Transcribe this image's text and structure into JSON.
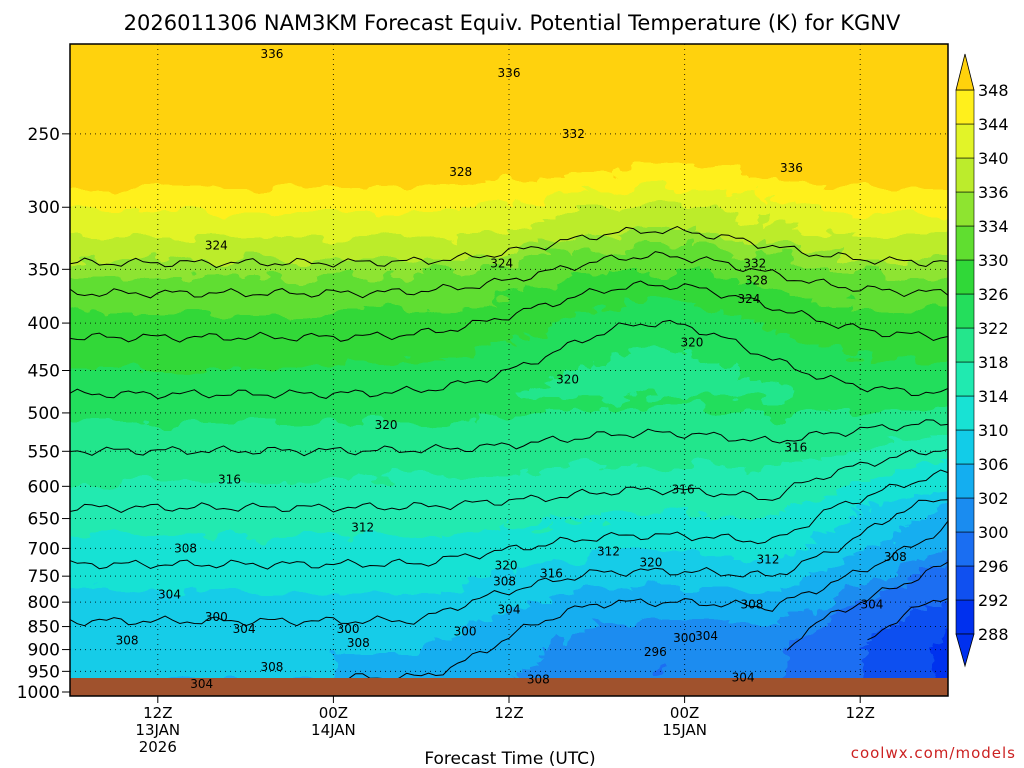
{
  "chart_data": {
    "type": "contour",
    "title": "2026011306 NAM3KM Forecast Equiv. Potential Temperature (K) for KGNV",
    "xlabel": "Forecast Time (UTC)",
    "ylabel": "",
    "credit": "coolwx.com/models",
    "y_axis": {
      "scale": "log-pressure",
      "ylim": [
        1010,
        200
      ],
      "ticks": [
        250,
        300,
        350,
        400,
        450,
        500,
        550,
        600,
        650,
        700,
        750,
        800,
        850,
        900,
        950,
        1000
      ]
    },
    "x_axis": {
      "ticks": [
        {
          "hour": 6,
          "lines": [
            "12Z",
            "13JAN",
            "2026"
          ]
        },
        {
          "hour": 18,
          "lines": [
            "00Z",
            "14JAN"
          ]
        },
        {
          "hour": 30,
          "lines": [
            "12Z"
          ]
        },
        {
          "hour": 42,
          "lines": [
            "00Z",
            "15JAN"
          ]
        },
        {
          "hour": 54,
          "lines": [
            "12Z"
          ]
        }
      ],
      "xlim": [
        0,
        60
      ]
    },
    "colorbar": {
      "levels": [
        288,
        292,
        296,
        300,
        302,
        306,
        310,
        314,
        318,
        322,
        326,
        330,
        334,
        336,
        340,
        344,
        348
      ],
      "colors": [
        "#0030ee",
        "#1050f0",
        "#1a6ef2",
        "#1a8cf0",
        "#14aef0",
        "#12cce8",
        "#18e2d4",
        "#20eab0",
        "#24e68c",
        "#24de5c",
        "#30d838",
        "#60de30",
        "#8ee430",
        "#bcec2c",
        "#e2f428",
        "#fff01c",
        "#ffd20c"
      ]
    },
    "contour_labels": [
      {
        "text": "336",
        "hour": 13.8,
        "p": 205
      },
      {
        "text": "336",
        "hour": 30.0,
        "p": 215
      },
      {
        "text": "336",
        "hour": 49.3,
        "p": 272
      },
      {
        "text": "332",
        "hour": 34.4,
        "p": 250
      },
      {
        "text": "332",
        "hour": 46.8,
        "p": 345
      },
      {
        "text": "328",
        "hour": 26.7,
        "p": 275
      },
      {
        "text": "328",
        "hour": 46.9,
        "p": 360
      },
      {
        "text": "324",
        "hour": 10.0,
        "p": 330
      },
      {
        "text": "324",
        "hour": 29.5,
        "p": 345
      },
      {
        "text": "324",
        "hour": 46.4,
        "p": 377
      },
      {
        "text": "320",
        "hour": 42.5,
        "p": 420
      },
      {
        "text": "320",
        "hour": 34.0,
        "p": 460
      },
      {
        "text": "320",
        "hour": 21.6,
        "p": 515
      },
      {
        "text": "320",
        "hour": 29.8,
        "p": 730
      },
      {
        "text": "320",
        "hour": 39.7,
        "p": 725
      },
      {
        "text": "316",
        "hour": 10.9,
        "p": 590
      },
      {
        "text": "316",
        "hour": 49.6,
        "p": 545
      },
      {
        "text": "316",
        "hour": 41.9,
        "p": 605
      },
      {
        "text": "316",
        "hour": 32.9,
        "p": 745
      },
      {
        "text": "312",
        "hour": 20.0,
        "p": 665
      },
      {
        "text": "312",
        "hour": 36.8,
        "p": 705
      },
      {
        "text": "312",
        "hour": 47.7,
        "p": 720
      },
      {
        "text": "308",
        "hour": 7.9,
        "p": 700
      },
      {
        "text": "308",
        "hour": 29.7,
        "p": 760
      },
      {
        "text": "308",
        "hour": 56.4,
        "p": 715
      },
      {
        "text": "308",
        "hour": 46.6,
        "p": 805
      },
      {
        "text": "308",
        "hour": 3.9,
        "p": 880
      },
      {
        "text": "308",
        "hour": 19.7,
        "p": 885
      },
      {
        "text": "308",
        "hour": 13.8,
        "p": 940
      },
      {
        "text": "308",
        "hour": 32.0,
        "p": 970
      },
      {
        "text": "304",
        "hour": 6.8,
        "p": 785
      },
      {
        "text": "304",
        "hour": 30.0,
        "p": 815
      },
      {
        "text": "304",
        "hour": 54.8,
        "p": 805
      },
      {
        "text": "304",
        "hour": 11.9,
        "p": 855
      },
      {
        "text": "304",
        "hour": 43.5,
        "p": 870
      },
      {
        "text": "304",
        "hour": 9.0,
        "p": 980
      },
      {
        "text": "304",
        "hour": 46.0,
        "p": 965
      },
      {
        "text": "300",
        "hour": 10.0,
        "p": 830
      },
      {
        "text": "300",
        "hour": 19.0,
        "p": 855
      },
      {
        "text": "300",
        "hour": 27.0,
        "p": 860
      },
      {
        "text": "300",
        "hour": 42.0,
        "p": 875
      },
      {
        "text": "296",
        "hour": 40.0,
        "p": 905
      }
    ]
  }
}
